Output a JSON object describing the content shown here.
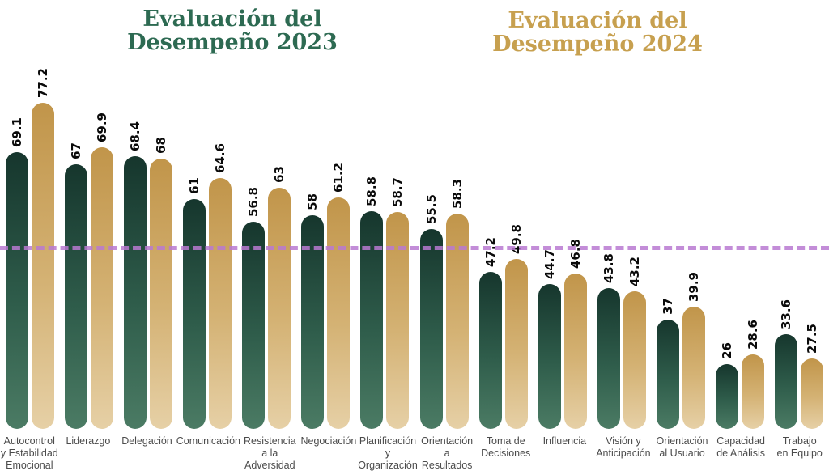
{
  "titles": {
    "t2023": {
      "line1": "Evaluación del",
      "line2": "Desempeño 2023",
      "color": "#2d6a52"
    },
    "t2024": {
      "line1": "Evaluación del",
      "line2": "Desempeño 2024",
      "color": "#c7a04f"
    }
  },
  "chart_data": {
    "type": "bar",
    "categories": [
      "Autocontrol y Estabilidad Emocional",
      "Liderazgo",
      "Delegación",
      "Comunicación",
      "Resistencia a la Adversidad",
      "Negociación",
      "Planificación y Organización",
      "Orientación a Resultados",
      "Toma de Decisiones",
      "Influencia",
      "Visión y Anticipación",
      "Orientación al Usuario",
      "Capacidad de Análisis",
      "Trabajo en Equipo"
    ],
    "category_label_lines": [
      [
        "Autocontrol",
        "y Estabilidad",
        "Emocional"
      ],
      [
        "Liderazgo"
      ],
      [
        "Delegación"
      ],
      [
        "Comunicación"
      ],
      [
        "Resistencia",
        "a la",
        "Adversidad"
      ],
      [
        "Negociación"
      ],
      [
        "Planificación",
        "y",
        "Organización"
      ],
      [
        "Orientación",
        "a Resultados"
      ],
      [
        "Toma de",
        "Decisiones"
      ],
      [
        "Influencia"
      ],
      [
        "Visión y",
        "Anticipación"
      ],
      [
        "Orientación",
        "al Usuario"
      ],
      [
        "Capacidad",
        "de Análisis"
      ],
      [
        "Trabajo",
        "en Equipo"
      ]
    ],
    "series": [
      {
        "name": "Evaluación del Desempeño 2023",
        "color_top": "#16362d",
        "color_bottom": "#4b7b64",
        "values": [
          69.1,
          67,
          68.4,
          61,
          56.8,
          58,
          58.8,
          55.5,
          47.2,
          44.7,
          43.8,
          37,
          26,
          33.6
        ]
      },
      {
        "name": "Evaluación del Desempeño 2024",
        "color_top": "#c1954a",
        "color_bottom": "#e6d0a6",
        "values": [
          77.2,
          69.9,
          68,
          64.6,
          63,
          61.2,
          58.7,
          58.3,
          49.8,
          46.8,
          43.2,
          39.9,
          28.6,
          27.5
        ]
      }
    ],
    "reference_line": {
      "approx_value": 50,
      "color": "#b879d1",
      "style": "dashed"
    },
    "value_labels": "rotated-90-above-bars",
    "legend": "none",
    "axes": "hidden",
    "grid": "off"
  }
}
